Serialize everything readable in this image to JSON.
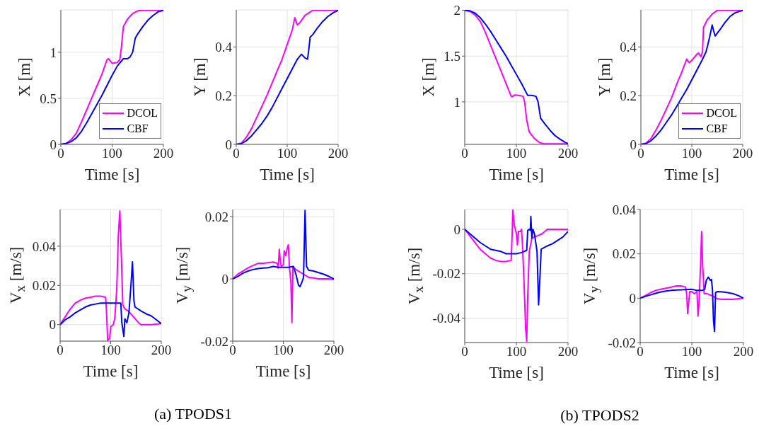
{
  "chart_data": [
    {
      "type": "line",
      "xlabel": "Time [s]",
      "ylabel": "X [m]",
      "xlim": [
        0,
        200
      ],
      "xticks": [
        0,
        100,
        200
      ],
      "ylim": [
        0,
        1.46
      ],
      "yticks": [
        0,
        0.5,
        1
      ],
      "grid": true,
      "legend": "bottom right",
      "series": [
        {
          "name": "DCOL",
          "color": "#ff00ff",
          "x": [
            0,
            10,
            20,
            30,
            40,
            50,
            60,
            70,
            80,
            90,
            93,
            100,
            110,
            115,
            118,
            122,
            130,
            140,
            150,
            160,
            200
          ],
          "values": [
            0,
            0.01,
            0.05,
            0.12,
            0.24,
            0.37,
            0.5,
            0.63,
            0.76,
            0.92,
            0.93,
            0.88,
            0.89,
            0.92,
            1.05,
            1.28,
            1.36,
            1.42,
            1.45,
            1.455,
            1.455
          ]
        },
        {
          "name": "CBF",
          "color": "#0000ff",
          "x": [
            0,
            10,
            20,
            30,
            40,
            50,
            60,
            70,
            80,
            90,
            100,
            110,
            122,
            130,
            135,
            140,
            145,
            150,
            160,
            170,
            180,
            190,
            200
          ],
          "values": [
            0,
            0.01,
            0.03,
            0.07,
            0.14,
            0.23,
            0.33,
            0.43,
            0.53,
            0.64,
            0.75,
            0.85,
            0.93,
            0.93,
            0.95,
            1.0,
            1.15,
            1.2,
            1.28,
            1.35,
            1.4,
            1.44,
            1.455
          ]
        }
      ]
    },
    {
      "type": "line",
      "xlabel": "Time [s]",
      "ylabel": "Y [m]",
      "xlim": [
        0,
        200
      ],
      "xticks": [
        0,
        100,
        200
      ],
      "ylim": [
        0,
        0.552
      ],
      "yticks": [
        0,
        0.2,
        0.4
      ],
      "grid": true,
      "series": [
        {
          "color": "#ff00ff",
          "x": [
            0,
            10,
            20,
            30,
            40,
            50,
            60,
            70,
            80,
            90,
            100,
            110,
            115,
            120,
            125,
            135,
            150,
            200
          ],
          "values": [
            0,
            0.005,
            0.03,
            0.065,
            0.11,
            0.155,
            0.2,
            0.25,
            0.3,
            0.35,
            0.41,
            0.47,
            0.52,
            0.49,
            0.5,
            0.53,
            0.55,
            0.55
          ]
        },
        {
          "color": "#0000ff",
          "x": [
            0,
            10,
            20,
            30,
            40,
            50,
            60,
            70,
            80,
            90,
            100,
            110,
            120,
            128,
            135,
            140,
            143,
            145,
            150,
            160,
            170,
            180,
            190,
            200
          ],
          "values": [
            0,
            0.003,
            0.015,
            0.035,
            0.06,
            0.085,
            0.115,
            0.15,
            0.19,
            0.23,
            0.27,
            0.31,
            0.35,
            0.37,
            0.355,
            0.35,
            0.4,
            0.44,
            0.45,
            0.48,
            0.505,
            0.525,
            0.54,
            0.55
          ]
        }
      ]
    },
    {
      "type": "line",
      "xlabel": "Time [s]",
      "ylabel": "X [m]",
      "xlim": [
        0,
        200
      ],
      "xticks": [
        0,
        100,
        200
      ],
      "ylim": [
        0.535,
        2.005
      ],
      "yticks": [
        1,
        1.5,
        2
      ],
      "grid": true,
      "series": [
        {
          "color": "#ff00ff",
          "x": [
            0,
            10,
            20,
            30,
            40,
            50,
            60,
            70,
            80,
            90,
            93,
            97,
            105,
            113,
            116,
            120,
            125,
            135,
            145,
            155,
            200
          ],
          "values": [
            2,
            1.99,
            1.95,
            1.88,
            1.76,
            1.62,
            1.48,
            1.34,
            1.2,
            1.06,
            1.06,
            1.075,
            1.07,
            1.06,
            1.0,
            0.8,
            0.67,
            0.6,
            0.555,
            0.54,
            0.54
          ]
        },
        {
          "color": "#0000ff",
          "x": [
            0,
            10,
            20,
            30,
            40,
            50,
            60,
            70,
            80,
            90,
            100,
            110,
            122,
            130,
            138,
            142,
            147,
            155,
            165,
            175,
            185,
            195,
            200
          ],
          "values": [
            2,
            1.995,
            1.97,
            1.92,
            1.85,
            1.77,
            1.68,
            1.59,
            1.5,
            1.4,
            1.3,
            1.2,
            1.07,
            1.07,
            1.06,
            1.0,
            0.82,
            0.76,
            0.69,
            0.63,
            0.59,
            0.555,
            0.545
          ]
        }
      ]
    },
    {
      "type": "line",
      "xlabel": "Time [s]",
      "ylabel": "Y [m]",
      "xlim": [
        0,
        200
      ],
      "xticks": [
        0,
        100,
        200
      ],
      "ylim": [
        0,
        0.552
      ],
      "yticks": [
        0,
        0.2,
        0.4
      ],
      "grid": true,
      "legend": "bottom right",
      "series": [
        {
          "name": "DCOL",
          "color": "#ff00ff",
          "x": [
            0,
            10,
            20,
            30,
            40,
            50,
            60,
            70,
            80,
            90,
            95,
            100,
            110,
            113,
            118,
            121,
            123,
            130,
            140,
            150,
            200
          ],
          "values": [
            0,
            0.005,
            0.025,
            0.06,
            0.1,
            0.145,
            0.19,
            0.245,
            0.295,
            0.35,
            0.335,
            0.345,
            0.37,
            0.375,
            0.36,
            0.38,
            0.48,
            0.51,
            0.535,
            0.55,
            0.55
          ]
        },
        {
          "name": "CBF",
          "color": "#0000ff",
          "x": [
            0,
            10,
            20,
            30,
            40,
            50,
            60,
            70,
            80,
            90,
            100,
            110,
            120,
            128,
            135,
            140,
            143,
            146,
            155,
            165,
            175,
            185,
            200
          ],
          "values": [
            0,
            0.003,
            0.015,
            0.035,
            0.06,
            0.09,
            0.12,
            0.155,
            0.19,
            0.225,
            0.265,
            0.305,
            0.345,
            0.38,
            0.44,
            0.49,
            0.465,
            0.445,
            0.47,
            0.5,
            0.525,
            0.54,
            0.55
          ]
        }
      ]
    },
    {
      "type": "line",
      "xlabel": "Time [s]",
      "ylabel": "V$_{x}$ [m/s]",
      "xlim": [
        0,
        200
      ],
      "xticks": [
        0,
        100,
        200
      ],
      "ylim": [
        -0.0084,
        0.0587
      ],
      "yticks": [
        0,
        0.02,
        0.04
      ],
      "grid": true,
      "annotations": [
        "(a) TPODS1"
      ],
      "series": [
        {
          "color": "#ff00ff",
          "x": [
            0,
            10,
            20,
            30,
            40,
            50,
            60,
            70,
            80,
            90,
            92,
            94,
            98,
            100,
            105,
            108,
            112,
            115,
            118,
            121,
            124,
            128,
            135,
            145,
            155,
            160,
            180,
            200
          ],
          "values": [
            0,
            0.004,
            0.008,
            0.011,
            0.0125,
            0.0135,
            0.014,
            0.0145,
            0.0145,
            0.014,
            0.005,
            -0.008,
            -0.007,
            -0.001,
            0,
            0.003,
            0.018,
            0.045,
            0.058,
            0.035,
            0.01,
            0.008,
            0.007,
            0.004,
            0.001,
            0,
            0,
            0.0005
          ]
        },
        {
          "color": "#0000ff",
          "x": [
            0,
            10,
            20,
            30,
            40,
            50,
            60,
            70,
            80,
            90,
            100,
            110,
            120,
            122,
            126,
            128,
            132,
            136,
            140,
            143,
            146,
            148,
            160,
            170,
            180,
            190,
            200
          ],
          "values": [
            0,
            0.0025,
            0.004,
            0.006,
            0.0075,
            0.009,
            0.01,
            0.0105,
            0.011,
            0.011,
            0.011,
            0.011,
            0.011,
            0.001,
            -0.006,
            0.003,
            0.001,
            0.006,
            0.02,
            0.032,
            0.012,
            0.009,
            0.007,
            0.0055,
            0.0045,
            0.0025,
            0.0005
          ]
        }
      ]
    },
    {
      "type": "line",
      "xlabel": "Time [s]",
      "ylabel": "V$_{y}$ [m/s]",
      "xlim": [
        0,
        200
      ],
      "xticks": [
        0,
        100,
        200
      ],
      "ylim": [
        -0.02,
        0.0223
      ],
      "yticks": [
        -0.02,
        0,
        0.02
      ],
      "grid": true,
      "series": [
        {
          "color": "#ff00ff",
          "x": [
            0,
            10,
            20,
            30,
            40,
            50,
            60,
            70,
            80,
            88,
            90,
            92,
            94,
            96,
            100,
            102,
            105,
            108,
            110,
            112,
            115,
            117,
            119,
            125,
            135,
            150,
            170,
            190,
            200
          ],
          "values": [
            0,
            0.0015,
            0.0025,
            0.0035,
            0.0043,
            0.005,
            0.005,
            0.0052,
            0.0054,
            0.005,
            0.0035,
            0.0095,
            0.006,
            0.004,
            0.0045,
            0.009,
            0.0075,
            0.01,
            0.011,
            0.004,
            -0.001,
            -0.014,
            0.004,
            0.003,
            0.002,
            0.0005,
            0,
            0,
            -0.0002
          ]
        },
        {
          "color": "#0000ff",
          "x": [
            0,
            10,
            20,
            30,
            40,
            50,
            60,
            70,
            80,
            90,
            100,
            110,
            120,
            125,
            130,
            133,
            137,
            140,
            143,
            146,
            150,
            160,
            170,
            180,
            190,
            200
          ],
          "values": [
            0,
            0.0008,
            0.0018,
            0.0025,
            0.003,
            0.0033,
            0.0035,
            0.0036,
            0.004,
            0.0037,
            0.0037,
            0.0037,
            0.004,
            0.0015,
            -0.002,
            -0.0025,
            -0.001,
            0.0005,
            0.022,
            0.004,
            0.0028,
            0.0025,
            0.002,
            0.0015,
            0.0008,
            0
          ]
        }
      ]
    },
    {
      "type": "line",
      "xlabel": "Time [s]",
      "ylabel": "V$_{x}$ [m/s]",
      "xlim": [
        0,
        200
      ],
      "xticks": [
        0,
        100,
        200
      ],
      "ylim": [
        -0.051,
        0.0089
      ],
      "yticks": [
        -0.04,
        -0.02,
        0
      ],
      "grid": true,
      "annotations": [
        "(b) TPODS2"
      ],
      "series": [
        {
          "color": "#ff00ff",
          "x": [
            0,
            10,
            20,
            30,
            40,
            50,
            60,
            70,
            80,
            90,
            92,
            93,
            96,
            100,
            102,
            104,
            108,
            110,
            112,
            115,
            118,
            120,
            122,
            125,
            130,
            140,
            150,
            160,
            180,
            200
          ],
          "values": [
            0,
            -0.003,
            -0.006,
            -0.009,
            -0.011,
            -0.013,
            -0.014,
            -0.0145,
            -0.0145,
            -0.014,
            -0.001,
            0.0088,
            0.002,
            -0.002,
            -0.007,
            -0.001,
            -0.001,
            0,
            -0.008,
            -0.025,
            -0.045,
            -0.0505,
            -0.03,
            -0.01,
            -0.004,
            -0.003,
            -0.002,
            0,
            0,
            0
          ]
        },
        {
          "color": "#0000ff",
          "x": [
            0,
            10,
            20,
            30,
            40,
            50,
            60,
            70,
            80,
            90,
            100,
            110,
            120,
            122,
            125,
            127,
            128,
            130,
            132,
            135,
            140,
            143,
            146,
            148,
            160,
            170,
            180,
            190,
            200
          ],
          "values": [
            0,
            -0.002,
            -0.004,
            -0.006,
            -0.0075,
            -0.009,
            -0.0095,
            -0.01,
            -0.011,
            -0.011,
            -0.011,
            -0.0105,
            -0.0095,
            -0.0005,
            0,
            -0.0005,
            0.0058,
            -0.004,
            0,
            -0.002,
            -0.01,
            -0.034,
            -0.02,
            -0.009,
            -0.0075,
            -0.0065,
            -0.005,
            -0.0035,
            -0.001
          ]
        }
      ]
    },
    {
      "type": "line",
      "xlabel": "Time [s]",
      "ylabel": "V$_{y}$ [m/s]",
      "xlim": [
        0,
        200
      ],
      "xticks": [
        0,
        100,
        200
      ],
      "ylim": [
        -0.02,
        0.04
      ],
      "yticks": [
        -0.02,
        0,
        0.02,
        0.04
      ],
      "grid": true,
      "series": [
        {
          "color": "#ff00ff",
          "x": [
            0,
            10,
            20,
            30,
            40,
            50,
            60,
            70,
            80,
            88,
            90,
            92,
            94,
            96,
            100,
            105,
            110,
            112,
            114,
            117,
            119,
            121,
            124,
            130,
            140,
            150,
            160,
            180,
            200
          ],
          "values": [
            0,
            0.0012,
            0.0025,
            0.0035,
            0.004,
            0.0045,
            0.005,
            0.0055,
            0.0055,
            0.005,
            0.002,
            -0.007,
            -0.002,
            0.003,
            0.003,
            0.002,
            0.003,
            -0.008,
            -0.002,
            0.015,
            0.03,
            0.015,
            0.002,
            0.002,
            0.001,
            -0.0003,
            -0.0005,
            -0.0005,
            0
          ]
        },
        {
          "color": "#0000ff",
          "x": [
            0,
            10,
            20,
            30,
            40,
            50,
            60,
            70,
            80,
            100,
            110,
            120,
            125,
            128,
            132,
            136,
            138,
            140,
            142,
            144,
            146,
            150,
            160,
            170,
            180,
            190,
            200
          ],
          "values": [
            0,
            0.0008,
            0.0015,
            0.0022,
            0.0028,
            0.0032,
            0.0035,
            0.0037,
            0.0038,
            0.004,
            0.0035,
            0.0035,
            0.004,
            0.008,
            0.0095,
            0.008,
            0.0085,
            0.004,
            -0.01,
            -0.015,
            0.0025,
            0.003,
            0.0028,
            0.0025,
            0.002,
            0.0012,
            0
          ]
        }
      ]
    }
  ]
}
